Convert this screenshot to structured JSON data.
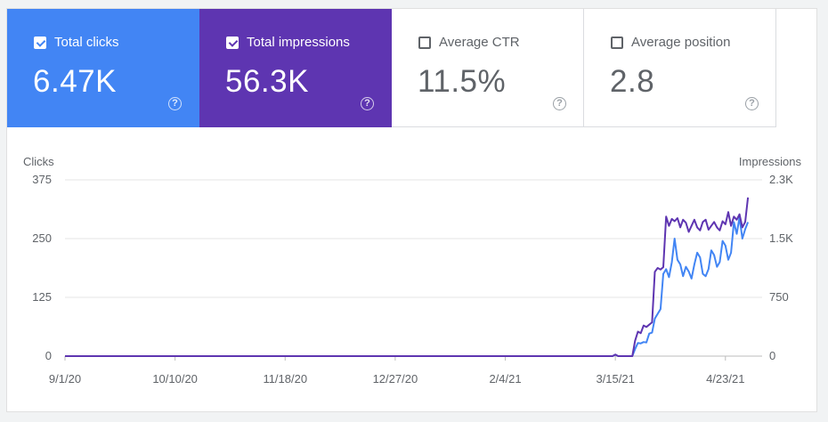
{
  "metrics": [
    {
      "label": "Total clicks",
      "value": "6.47K",
      "checked": true
    },
    {
      "label": "Total impressions",
      "value": "56.3K",
      "checked": true
    },
    {
      "label": "Average CTR",
      "value": "11.5%",
      "checked": false
    },
    {
      "label": "Average position",
      "value": "2.8",
      "checked": false
    }
  ],
  "help_glyph": "?",
  "colors": {
    "clicks": "#4285f4",
    "impressions": "#5e35b1"
  },
  "chart_data": {
    "type": "line",
    "ylabel_left": "Clicks",
    "ylabel_right": "Impressions",
    "y_left_ticks": [
      "375",
      "250",
      "125",
      "0"
    ],
    "y_right_ticks": [
      "2.3K",
      "1.5K",
      "750",
      "0"
    ],
    "y_left_range": [
      0,
      375
    ],
    "y_right_range": [
      0,
      2300
    ],
    "x_ticks": [
      "9/1/20",
      "10/10/20",
      "11/18/20",
      "12/27/20",
      "2/4/21",
      "3/15/21",
      "4/23/21"
    ],
    "x_range": [
      "2020-09-01",
      "2021-05-06"
    ],
    "grid": true,
    "series": [
      {
        "name": "Clicks",
        "axis": "left",
        "color": "#4285f4",
        "points": [
          [
            "2020-09-01",
            0
          ],
          [
            "2021-03-14",
            0
          ],
          [
            "2021-03-15",
            3
          ],
          [
            "2021-03-16",
            0
          ],
          [
            "2021-03-21",
            0
          ],
          [
            "2021-03-22",
            15
          ],
          [
            "2021-03-23",
            28
          ],
          [
            "2021-03-24",
            27
          ],
          [
            "2021-03-25",
            30
          ],
          [
            "2021-03-26",
            29
          ],
          [
            "2021-03-27",
            48
          ],
          [
            "2021-03-28",
            50
          ],
          [
            "2021-03-29",
            80
          ],
          [
            "2021-03-30",
            90
          ],
          [
            "2021-03-31",
            100
          ],
          [
            "2021-04-01",
            175
          ],
          [
            "2021-04-02",
            185
          ],
          [
            "2021-04-03",
            168
          ],
          [
            "2021-04-04",
            200
          ],
          [
            "2021-04-05",
            250
          ],
          [
            "2021-04-06",
            205
          ],
          [
            "2021-04-07",
            195
          ],
          [
            "2021-04-08",
            170
          ],
          [
            "2021-04-09",
            190
          ],
          [
            "2021-04-10",
            180
          ],
          [
            "2021-04-11",
            165
          ],
          [
            "2021-04-12",
            195
          ],
          [
            "2021-04-13",
            220
          ],
          [
            "2021-04-14",
            210
          ],
          [
            "2021-04-15",
            175
          ],
          [
            "2021-04-16",
            170
          ],
          [
            "2021-04-17",
            185
          ],
          [
            "2021-04-18",
            225
          ],
          [
            "2021-04-19",
            215
          ],
          [
            "2021-04-20",
            190
          ],
          [
            "2021-04-21",
            200
          ],
          [
            "2021-04-22",
            245
          ],
          [
            "2021-04-23",
            235
          ],
          [
            "2021-04-24",
            205
          ],
          [
            "2021-04-25",
            220
          ],
          [
            "2021-04-26",
            285
          ],
          [
            "2021-04-27",
            260
          ],
          [
            "2021-04-28",
            295
          ],
          [
            "2021-04-29",
            250
          ],
          [
            "2021-04-30",
            270
          ],
          [
            "2021-05-01",
            285
          ]
        ]
      },
      {
        "name": "Impressions",
        "axis": "right",
        "color": "#5e35b1",
        "points": [
          [
            "2020-09-01",
            0
          ],
          [
            "2021-03-14",
            0
          ],
          [
            "2021-03-15",
            20
          ],
          [
            "2021-03-16",
            0
          ],
          [
            "2021-03-21",
            0
          ],
          [
            "2021-03-22",
            200
          ],
          [
            "2021-03-23",
            320
          ],
          [
            "2021-03-24",
            300
          ],
          [
            "2021-03-25",
            400
          ],
          [
            "2021-03-26",
            380
          ],
          [
            "2021-03-27",
            410
          ],
          [
            "2021-03-28",
            440
          ],
          [
            "2021-03-29",
            1100
          ],
          [
            "2021-03-30",
            1150
          ],
          [
            "2021-03-31",
            1130
          ],
          [
            "2021-04-01",
            1160
          ],
          [
            "2021-04-02",
            1820
          ],
          [
            "2021-04-03",
            1700
          ],
          [
            "2021-04-04",
            1790
          ],
          [
            "2021-04-05",
            1760
          ],
          [
            "2021-04-06",
            1800
          ],
          [
            "2021-04-07",
            1680
          ],
          [
            "2021-04-08",
            1780
          ],
          [
            "2021-04-09",
            1740
          ],
          [
            "2021-04-10",
            1620
          ],
          [
            "2021-04-11",
            1700
          ],
          [
            "2021-04-12",
            1780
          ],
          [
            "2021-04-13",
            1680
          ],
          [
            "2021-04-14",
            1640
          ],
          [
            "2021-04-15",
            1750
          ],
          [
            "2021-04-16",
            1780
          ],
          [
            "2021-04-17",
            1650
          ],
          [
            "2021-04-18",
            1700
          ],
          [
            "2021-04-19",
            1750
          ],
          [
            "2021-04-20",
            1680
          ],
          [
            "2021-04-21",
            1640
          ],
          [
            "2021-04-22",
            1760
          ],
          [
            "2021-04-23",
            1720
          ],
          [
            "2021-04-24",
            1880
          ],
          [
            "2021-04-25",
            1700
          ],
          [
            "2021-04-26",
            1820
          ],
          [
            "2021-04-27",
            1780
          ],
          [
            "2021-04-28",
            1850
          ],
          [
            "2021-04-29",
            1680
          ],
          [
            "2021-04-30",
            1750
          ],
          [
            "2021-05-01",
            2070
          ]
        ]
      }
    ]
  }
}
